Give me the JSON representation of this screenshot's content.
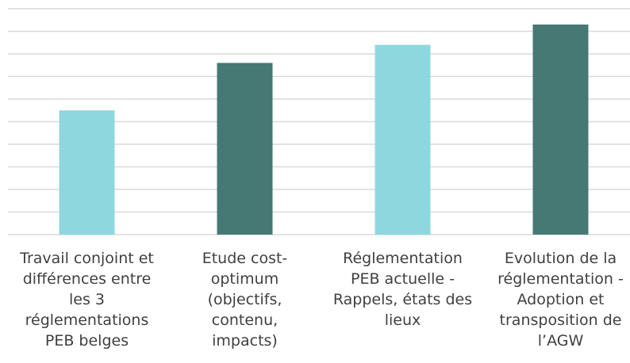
{
  "chart_data": {
    "type": "bar",
    "categories": [
      "Travail conjoint et différences entre les 3 réglementations PEB belges",
      "Etude cost-optimum (objectifs, contenu, impacts)",
      "Réglementation PEB actuelle - Rappels, états des lieux",
      "Evolution de la réglementation - Adoption et transposition de l’AGW"
    ],
    "values": [
      5.5,
      7.6,
      8.4,
      9.3
    ],
    "colors": [
      "#8fd7df",
      "#467874",
      "#8fd7df",
      "#467874"
    ],
    "ylim": [
      0,
      10
    ],
    "yticks": [
      0,
      1,
      2,
      3,
      4,
      5,
      6,
      7,
      8,
      9,
      10
    ],
    "grid": true
  }
}
